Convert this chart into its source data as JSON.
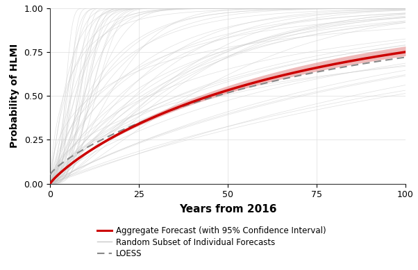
{
  "xlabel": "Years from 2016",
  "ylabel": "Probability of HLMI",
  "xlim": [
    0,
    100
  ],
  "ylim": [
    0,
    1.0
  ],
  "xticks": [
    0,
    25,
    50,
    75,
    100
  ],
  "yticks": [
    0.0,
    0.25,
    0.5,
    0.75,
    1.0
  ],
  "aggregate_color": "#CC0000",
  "ci_color": "#E08080",
  "ci_alpha": 0.55,
  "loess_color": "#888888",
  "individual_color": "#C8C8C8",
  "individual_alpha": 0.55,
  "background_color": "#FFFFFF",
  "legend_labels": [
    "Aggregate Forecast (with 95% Confidence Interval)",
    "Random Subset of Individual Forecasts",
    "LOESS"
  ],
  "num_individual_curves": 60,
  "figsize": [
    6.02,
    3.89
  ],
  "dpi": 100
}
